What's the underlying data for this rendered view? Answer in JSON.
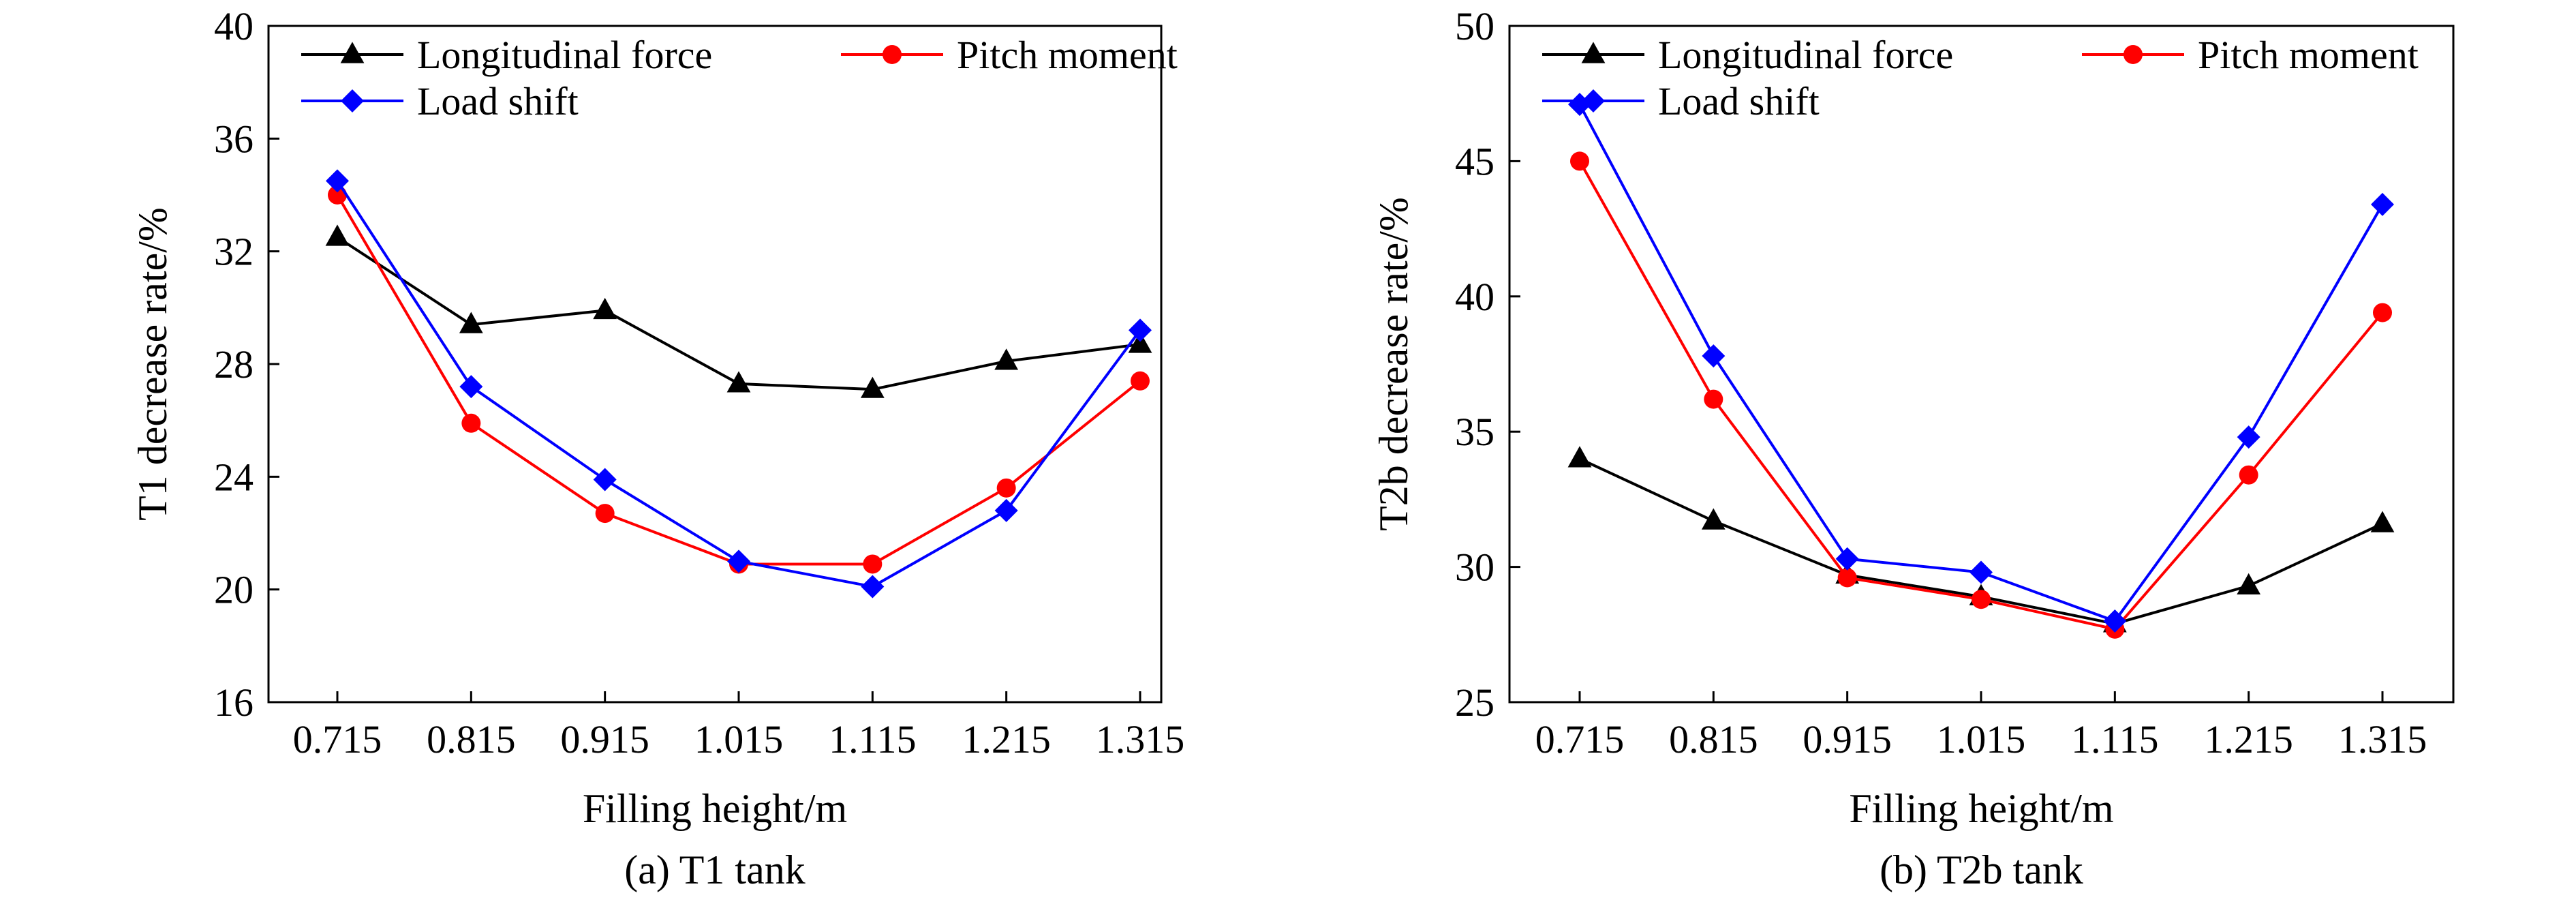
{
  "chart_data": [
    {
      "type": "line",
      "caption": "(a) T1 tank",
      "xlabel": "Filling height/m",
      "ylabel": "T1 decrease rate/%",
      "categories": [
        "0.715",
        "0.815",
        "0.915",
        "1.015",
        "1.115",
        "1.215",
        "1.315"
      ],
      "yticks": [
        "16",
        "20",
        "24",
        "28",
        "32",
        "36",
        "40"
      ],
      "ylim": [
        16,
        40
      ],
      "series": [
        {
          "name": "Longitudinal force",
          "color": "#000000",
          "marker": "triangle",
          "values": [
            32.5,
            29.4,
            29.9,
            27.3,
            27.1,
            28.1,
            28.7
          ]
        },
        {
          "name": "Pitch moment",
          "color": "#ff0000",
          "marker": "circle",
          "values": [
            34.0,
            25.9,
            22.7,
            20.9,
            20.9,
            23.6,
            27.4
          ]
        },
        {
          "name": "Load shift",
          "color": "#0000ff",
          "marker": "diamond",
          "values": [
            34.5,
            27.2,
            23.9,
            21.0,
            20.1,
            22.8,
            29.2
          ]
        }
      ]
    },
    {
      "type": "line",
      "caption": "(b) T2b tank",
      "xlabel": "Filling height/m",
      "ylabel": "T2b decrease rate/%",
      "categories": [
        "0.715",
        "0.815",
        "0.915",
        "1.015",
        "1.115",
        "1.215",
        "1.315"
      ],
      "yticks": [
        "25",
        "30",
        "35",
        "40",
        "45",
        "50"
      ],
      "ylim": [
        25,
        50
      ],
      "series": [
        {
          "name": "Longitudinal force",
          "color": "#000000",
          "marker": "triangle",
          "values": [
            34.0,
            31.7,
            29.7,
            28.9,
            27.9,
            29.3,
            31.6
          ]
        },
        {
          "name": "Pitch moment",
          "color": "#ff0000",
          "marker": "circle",
          "values": [
            45.0,
            36.2,
            29.6,
            28.8,
            27.7,
            33.4,
            39.4
          ]
        },
        {
          "name": "Load shift",
          "color": "#0000ff",
          "marker": "diamond",
          "values": [
            47.1,
            37.8,
            30.3,
            29.8,
            28.0,
            34.8,
            43.4
          ]
        }
      ]
    }
  ]
}
